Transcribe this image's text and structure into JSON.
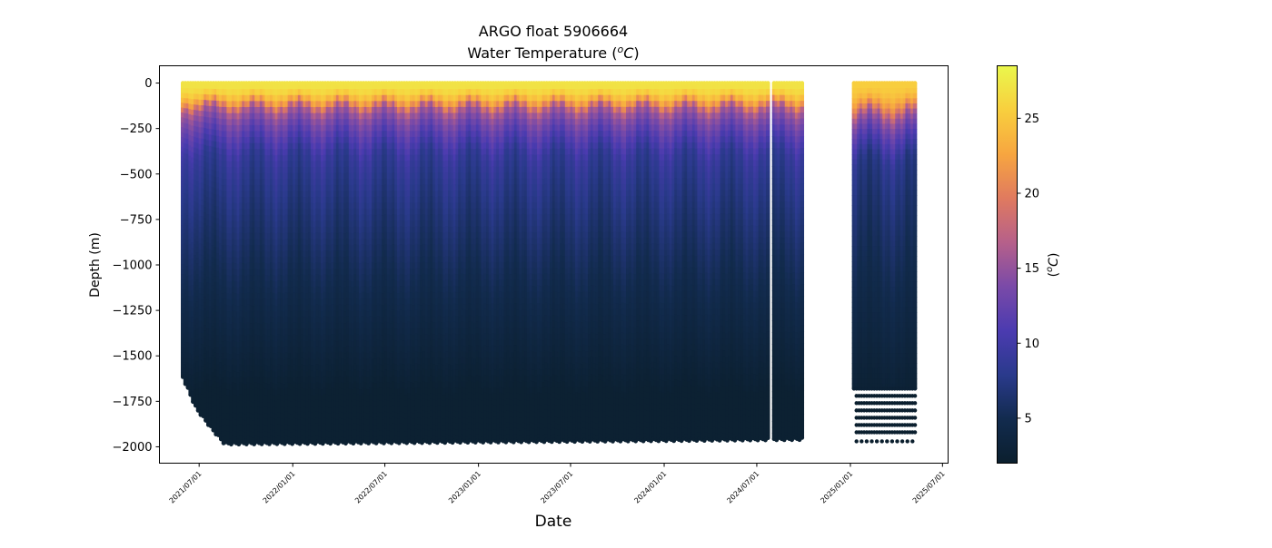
{
  "chart_data": {
    "type": "scatter",
    "title": "ARGO float 5906664",
    "subtitle_prefix": "Water Temperature (",
    "subtitle_unit_sup": "o",
    "subtitle_unit": "C",
    "subtitle_suffix": ")",
    "xlabel": "Date",
    "ylabel": "Depth (m)",
    "xlim": [
      "2021-04-14",
      "2025-07-12"
    ],
    "ylim": [
      -2090,
      95
    ],
    "yticks": [
      0,
      -250,
      -500,
      -750,
      -1000,
      -1250,
      -1500,
      -1750,
      -2000
    ],
    "ytick_labels": [
      "0",
      "−250",
      "−500",
      "−750",
      "−1000",
      "−1250",
      "−1500",
      "−1750",
      "−2000"
    ],
    "xticks": [
      "2021-07-01",
      "2022-01-01",
      "2022-07-01",
      "2023-01-01",
      "2023-07-01",
      "2024-01-01",
      "2024-07-01",
      "2025-01-01",
      "2025-07-01"
    ],
    "xtick_labels": [
      "2021/07/01",
      "2022/01/01",
      "2022/07/01",
      "2023/01/01",
      "2023/07/01",
      "2024/01/01",
      "2024/07/01",
      "2025/01/01",
      "2025/07/01"
    ],
    "colorbar": {
      "label_prefix": "(",
      "label_sup": "o",
      "label_unit": "C",
      "label_suffix": ")",
      "range": [
        2.0,
        28.5
      ],
      "ticks": [
        5,
        10,
        15,
        20,
        25
      ],
      "tick_labels": [
        "5",
        "10",
        "15",
        "20",
        "25"
      ],
      "colors": [
        "#0b1f2e",
        "#122b4e",
        "#2a3a8c",
        "#4b3bb0",
        "#7a4aa8",
        "#b6608a",
        "#e07a5f",
        "#f7a640",
        "#f8cf3e",
        "#eaf74c"
      ]
    },
    "series": [
      {
        "segments": [
          {
            "start": "2021-05-30",
            "end": "2024-07-25",
            "interval_days": 5,
            "mid_temp_c": 9.0,
            "deep_temp_c": 2.4,
            "surface_temp_c": 27.0,
            "thermocline_m": 140
          },
          {
            "start": "2024-08-04",
            "end": "2024-09-28",
            "interval_days": 5,
            "mid_temp_c": 9.0,
            "deep_temp_c": 2.4,
            "surface_temp_c": 27.0,
            "thermocline_m": 140
          },
          {
            "start": "2025-01-08",
            "end": "2025-05-08",
            "interval_days": 5,
            "mid_temp_c": 8.0,
            "deep_temp_c": 2.6,
            "surface_temp_c": 25.5,
            "thermocline_m": 170
          }
        ],
        "max_depths_m": [
          {
            "date": "2021-05-30",
            "depth": -1610
          },
          {
            "date": "2021-06-25",
            "depth": -1780
          },
          {
            "date": "2021-07-25",
            "depth": -1890
          },
          {
            "date": "2021-08-20",
            "depth": -1975
          },
          {
            "date": "2024-09-28",
            "depth": -1950
          },
          {
            "date": "2025-01-08",
            "depth": -1680
          }
        ],
        "deep_scatter_2025": {
          "depths": [
            -1720,
            -1760,
            -1800,
            -1840,
            -1880,
            -1920
          ],
          "sparse_depth": -1970
        }
      }
    ]
  }
}
